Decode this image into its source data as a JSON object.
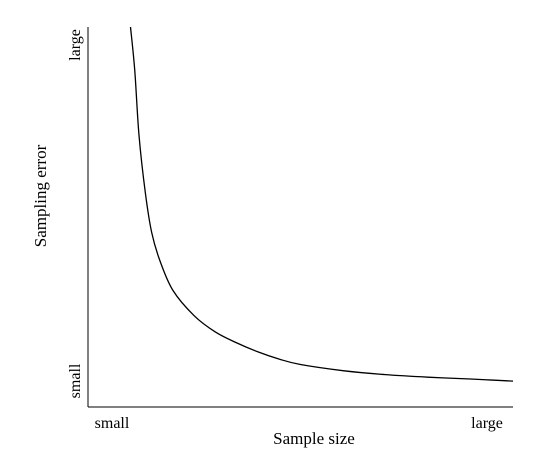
{
  "chart_data": {
    "type": "line",
    "xlabel": "Sample size",
    "ylabel": "Sampling error",
    "x_tick_labels": [
      "small",
      "large"
    ],
    "y_tick_labels": [
      "small",
      "large"
    ],
    "grid": false,
    "legend": "none",
    "xlim": [
      0,
      1
    ],
    "ylim": [
      0,
      1
    ],
    "series": [
      {
        "x": [
          0.1,
          0.11,
          0.12,
          0.135,
          0.15,
          0.17,
          0.2,
          0.25,
          0.3,
          0.35,
          0.4,
          0.45,
          0.5,
          0.6,
          0.7,
          0.8,
          0.9,
          0.95,
          1.0
        ],
        "y": [
          1.0,
          0.88,
          0.7,
          0.54,
          0.43,
          0.35,
          0.27,
          0.2,
          0.155,
          0.125,
          0.1,
          0.08,
          0.065,
          0.048,
          0.037,
          0.03,
          0.025,
          0.022,
          0.019
        ]
      }
    ],
    "colors": {
      "line": "#000000",
      "axis": "#000000"
    }
  }
}
